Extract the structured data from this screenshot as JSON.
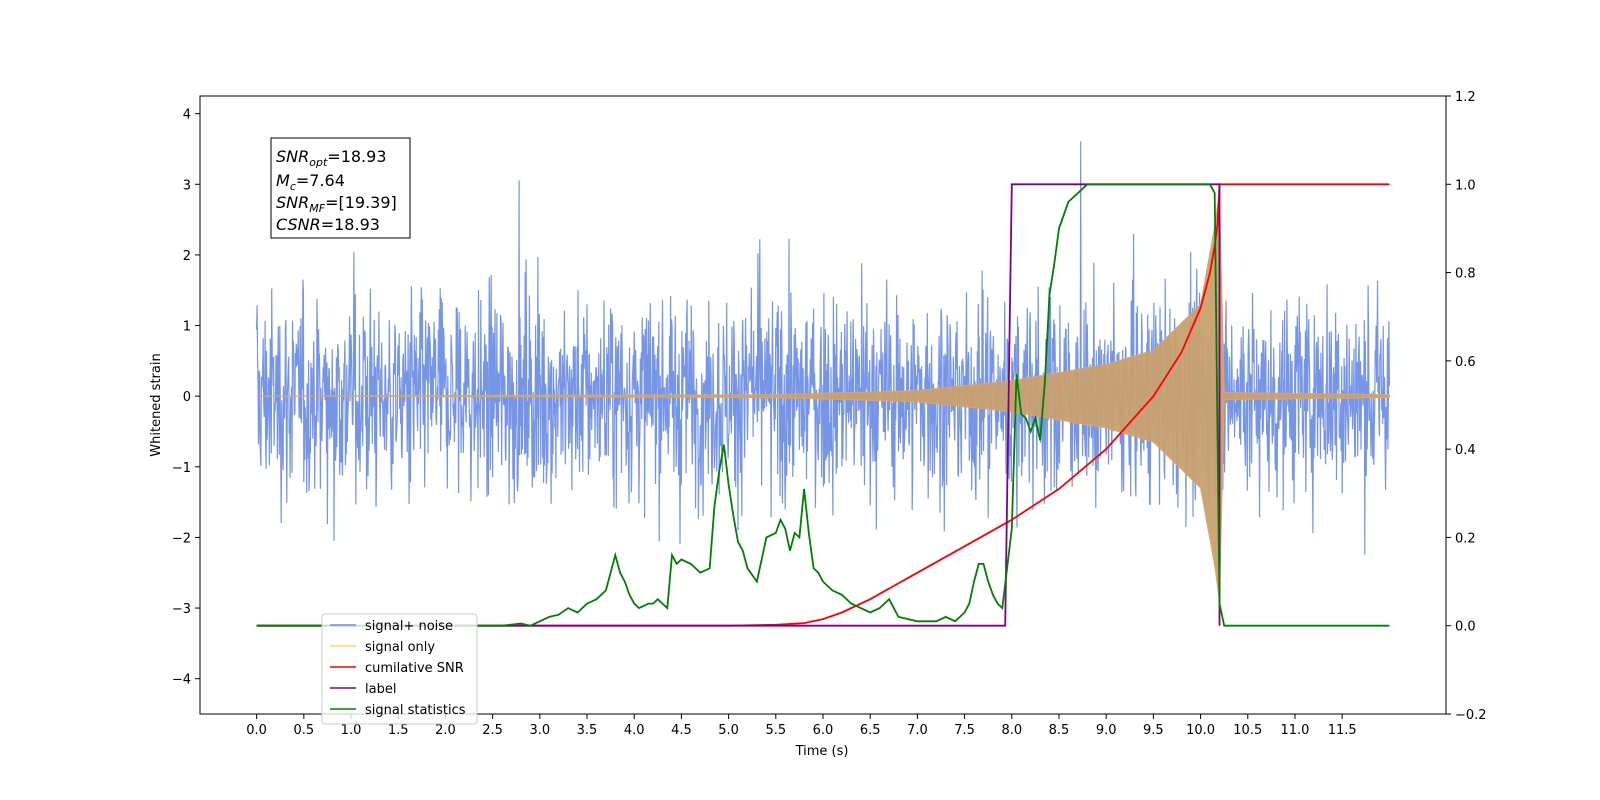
{
  "chart_data": {
    "type": "line",
    "xlabel": "Time (s)",
    "ylabel_left": "Whitened strain",
    "ylabel_right": "",
    "xlim": [
      -0.6,
      12.6
    ],
    "ylim_left": [
      -4.5,
      4.25
    ],
    "ylim_right": [
      -0.2,
      1.2
    ],
    "x_ticks": [
      0.0,
      0.5,
      1.0,
      1.5,
      2.0,
      2.5,
      3.0,
      3.5,
      4.0,
      4.5,
      5.0,
      5.5,
      6.0,
      6.5,
      7.0,
      7.5,
      8.0,
      8.5,
      9.0,
      9.5,
      10.0,
      10.5,
      11.0,
      11.5
    ],
    "x_tick_labels": [
      "0.0",
      "0.5",
      "1.0",
      "1.5",
      "2.0",
      "2.5",
      "3.0",
      "3.5",
      "4.0",
      "4.5",
      "5.0",
      "5.5",
      "6.0",
      "6.5",
      "7.0",
      "7.5",
      "8.0",
      "8.5",
      "9.0",
      "9.5",
      "10.0",
      "10.5",
      "11.0",
      "11.5"
    ],
    "y_left_ticks": [
      -4,
      -3,
      -2,
      -1,
      0,
      1,
      2,
      3,
      4
    ],
    "y_left_tick_labels": [
      "−4",
      "−3",
      "−2",
      "−1",
      "0",
      "1",
      "2",
      "3",
      "4"
    ],
    "y_right_ticks": [
      -0.2,
      0.0,
      0.2,
      0.4,
      0.6,
      0.8,
      1.0,
      1.2
    ],
    "y_right_tick_labels": [
      "−0.2",
      "0.0",
      "0.2",
      "0.4",
      "0.6",
      "0.8",
      "1.0",
      "1.2"
    ],
    "grid": false,
    "legend_placement": "lower-left",
    "annotation": {
      "snr_opt_label": "SNR",
      "snr_opt_sub": "opt",
      "snr_opt_value": "=18.93",
      "mc_label": "M",
      "mc_sub": "c",
      "mc_value": "=7.64",
      "snr_mf_label": "SNR",
      "snr_mf_sub": "MF",
      "snr_mf_value": "=[19.39]",
      "csnr_label": "CSNR",
      "csnr_value": "=18.93"
    },
    "series": [
      {
        "name": "signal+ noise",
        "axis": "left",
        "color": "#6f8fe6",
        "description": "whitened noise, amplitude ~±1 with spikes to ~±3.8, over 0–12 s",
        "t_range": [
          0.0,
          12.0
        ],
        "noise_sigma": 1.0
      },
      {
        "name": "signal only",
        "axis": "left",
        "color": "#ffa500",
        "description": "chirp envelope, ~0 until 5.5 s, growing to ~±2.9 at 10.2 s, then 0",
        "envelope": {
          "x": [
            0.0,
            5.5,
            7.0,
            8.0,
            9.0,
            9.5,
            10.0,
            10.15,
            10.2,
            10.25,
            12.0
          ],
          "y": [
            0,
            0.02,
            0.08,
            0.22,
            0.45,
            0.65,
            1.3,
            2.4,
            2.9,
            0.05,
            0.02
          ]
        }
      },
      {
        "name": "cumilative SNR",
        "axis": "right",
        "color": "#ff0000",
        "x": [
          0.0,
          5.0,
          5.5,
          5.8,
          6.0,
          6.2,
          6.5,
          7.0,
          7.5,
          8.0,
          8.5,
          9.0,
          9.5,
          9.8,
          10.0,
          10.1,
          10.15,
          10.18,
          10.2,
          12.0
        ],
        "y": [
          0.0,
          0.0,
          0.002,
          0.006,
          0.015,
          0.03,
          0.06,
          0.12,
          0.18,
          0.24,
          0.31,
          0.4,
          0.52,
          0.62,
          0.72,
          0.8,
          0.86,
          0.91,
          1.0,
          1.0
        ]
      },
      {
        "name": "label",
        "axis": "right",
        "color": "#800080",
        "x": [
          0.0,
          7.93,
          8.0,
          10.2,
          10.2,
          10.2
        ],
        "y": [
          0.0,
          0.0,
          1.0,
          1.0,
          0.0,
          0.0
        ]
      },
      {
        "name": "signal statistics",
        "axis": "right",
        "color": "#008000",
        "x": [
          0.0,
          2.6,
          2.8,
          2.9,
          3.0,
          3.1,
          3.2,
          3.3,
          3.4,
          3.5,
          3.55,
          3.6,
          3.65,
          3.7,
          3.75,
          3.8,
          3.85,
          3.9,
          3.95,
          4.0,
          4.05,
          4.1,
          4.15,
          4.2,
          4.25,
          4.3,
          4.35,
          4.4,
          4.45,
          4.5,
          4.6,
          4.7,
          4.8,
          4.85,
          4.9,
          4.95,
          5.0,
          5.05,
          5.1,
          5.15,
          5.2,
          5.3,
          5.4,
          5.5,
          5.55,
          5.6,
          5.65,
          5.7,
          5.75,
          5.8,
          5.85,
          5.9,
          5.95,
          6.0,
          6.1,
          6.2,
          6.3,
          6.4,
          6.5,
          6.6,
          6.7,
          6.75,
          6.8,
          6.9,
          7.0,
          7.1,
          7.2,
          7.3,
          7.4,
          7.5,
          7.55,
          7.6,
          7.65,
          7.7,
          7.75,
          7.8,
          7.85,
          7.9,
          7.95,
          8.0,
          8.05,
          8.1,
          8.15,
          8.2,
          8.25,
          8.3,
          8.35,
          8.4,
          8.45,
          8.5,
          8.55,
          8.6,
          8.7,
          8.8,
          9.0,
          9.5,
          10.0,
          10.1,
          10.15,
          10.2,
          10.25,
          12.0
        ],
        "y": [
          0.0,
          0.0,
          0.005,
          0.0,
          0.01,
          0.02,
          0.025,
          0.04,
          0.03,
          0.05,
          0.055,
          0.06,
          0.07,
          0.08,
          0.12,
          0.16,
          0.12,
          0.1,
          0.07,
          0.05,
          0.04,
          0.045,
          0.05,
          0.05,
          0.06,
          0.05,
          0.04,
          0.16,
          0.14,
          0.15,
          0.14,
          0.12,
          0.13,
          0.27,
          0.35,
          0.41,
          0.32,
          0.25,
          0.19,
          0.17,
          0.13,
          0.1,
          0.2,
          0.21,
          0.24,
          0.22,
          0.17,
          0.21,
          0.2,
          0.31,
          0.21,
          0.13,
          0.12,
          0.1,
          0.08,
          0.07,
          0.05,
          0.04,
          0.03,
          0.04,
          0.06,
          0.04,
          0.02,
          0.015,
          0.01,
          0.01,
          0.01,
          0.02,
          0.01,
          0.03,
          0.05,
          0.1,
          0.14,
          0.14,
          0.1,
          0.07,
          0.05,
          0.04,
          0.13,
          0.22,
          0.57,
          0.48,
          0.47,
          0.44,
          0.47,
          0.42,
          0.55,
          0.75,
          0.82,
          0.9,
          0.93,
          0.96,
          0.98,
          1.0,
          1.0,
          1.0,
          1.0,
          1.0,
          0.98,
          0.05,
          0.0,
          0.0
        ]
      }
    ]
  }
}
